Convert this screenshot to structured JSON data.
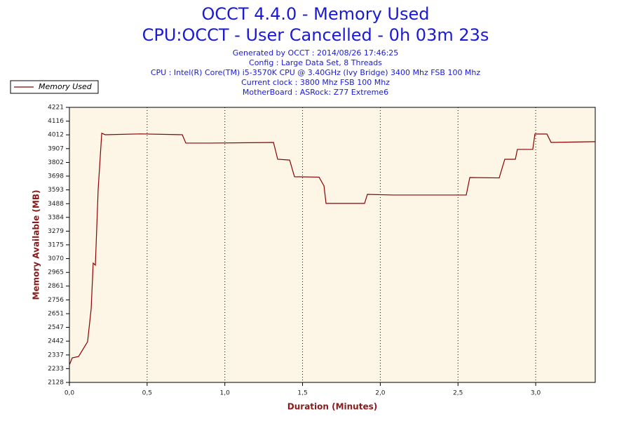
{
  "chart_data": {
    "type": "line",
    "title": [
      "OCCT 4.4.0 - Memory Used",
      "CPU:OCCT - User Cancelled - 0h 03m 23s"
    ],
    "subtitle_lines": [
      "Generated by OCCT : 2014/08/26 17:46:25",
      "Config : Large Data Set, 8 Threads",
      "CPU : Intel(R) Core(TM) i5-3570K CPU @ 3.40GHz (Ivy Bridge) 3400 Mhz FSB 100 Mhz",
      "Current clock : 3800 Mhz FSB 100 Mhz",
      "MotherBoard : ASRock: Z77 Extreme6"
    ],
    "x_label": "Duration (Minutes)",
    "y_label": "Memory Available (MB)",
    "x": [
      0,
      0.018,
      0.059,
      0.095,
      0.117,
      0.14,
      0.153,
      0.167,
      0.185,
      0.208,
      0.23,
      0.456,
      0.726,
      0.749,
      0.907,
      1.313,
      1.34,
      1.417,
      1.448,
      1.606,
      1.638,
      1.651,
      1.899,
      1.917,
      2.08,
      2.553,
      2.576,
      2.765,
      2.801,
      2.869,
      2.882,
      2.981,
      2.995,
      3.072,
      3.099,
      3.383
    ],
    "series": [
      {
        "name": "Memory Used",
        "color": "#8b0000",
        "values": [
          2261,
          2315,
          2325,
          2395,
          2438,
          2689,
          3036,
          3020,
          3597,
          4024,
          4013,
          4019,
          4013,
          3949,
          3949,
          3954,
          3826,
          3820,
          3693,
          3690,
          3623,
          3490,
          3490,
          3559,
          3554,
          3554,
          3687,
          3684,
          3826,
          3826,
          3901,
          3901,
          4018,
          4018,
          3954,
          3960
        ]
      }
    ],
    "xlim": [
      0,
      3.383
    ],
    "ylim": [
      2128,
      4221
    ],
    "xticks": [
      {
        "value": 0,
        "label": "0,0"
      },
      {
        "value": 0.5,
        "label": "0,5"
      },
      {
        "value": 1,
        "label": "1,0"
      },
      {
        "value": 1.5,
        "label": "1,5"
      },
      {
        "value": 2,
        "label": "2,0"
      },
      {
        "value": 2.5,
        "label": "2,5"
      },
      {
        "value": 3,
        "label": "3,0"
      }
    ],
    "yticks": [
      2128,
      2233,
      2337,
      2442,
      2547,
      2651,
      2756,
      2861,
      2965,
      3070,
      3175,
      3279,
      3384,
      3488,
      3593,
      3698,
      3802,
      3907,
      4012,
      4116,
      4221
    ],
    "grid": "x",
    "background": "#fdf5e6"
  }
}
